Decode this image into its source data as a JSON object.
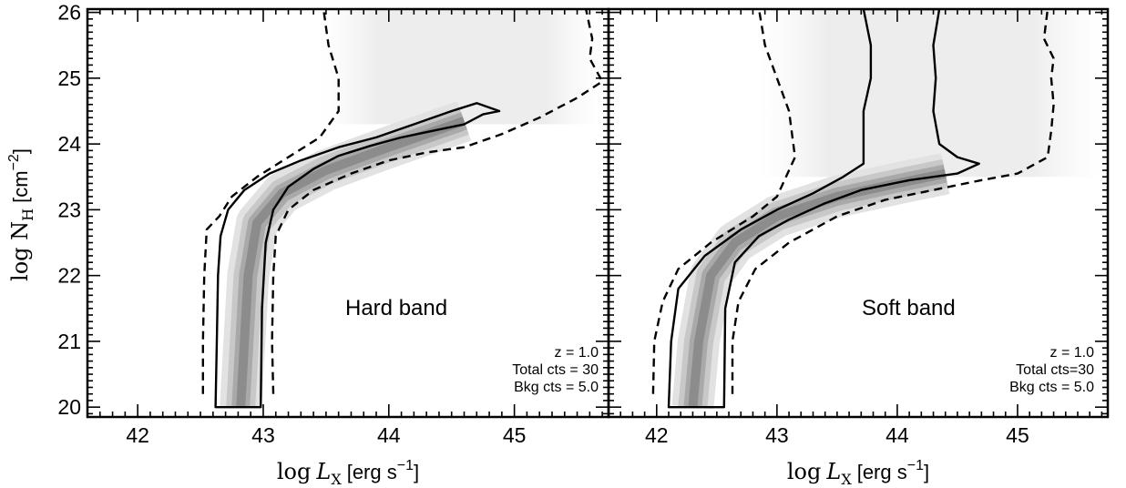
{
  "chart_data": [
    {
      "type": "heatmap",
      "panel": "left",
      "band_label": "Hard band",
      "annotation": [
        "z =   1.0",
        "Total cts = 30",
        "Bkg cts = 5.0"
      ],
      "xlabel": {
        "main": "log",
        "var": "L",
        "sub": "X",
        "unit": "[erg s",
        "sup": "−1",
        "close": "]"
      },
      "ylabel": {
        "main": "log N",
        "sub": "H",
        "unit": "[cm",
        "sup": "−2",
        "close": "]"
      },
      "xlim": [
        41.6,
        45.75
      ],
      "ylim": [
        19.85,
        26.05
      ],
      "xticks": [
        42,
        43,
        44,
        45
      ],
      "yticks": [
        20,
        21,
        22,
        23,
        24,
        25,
        26
      ],
      "xtick_labels": [
        "42",
        "43",
        "44",
        "45"
      ],
      "ytick_labels": [
        "20",
        "21",
        "22",
        "23",
        "24",
        "25",
        "26"
      ],
      "ridge": [
        [
          42.82,
          20.0
        ],
        [
          42.85,
          21.0
        ],
        [
          42.88,
          22.0
        ],
        [
          42.95,
          22.8
        ],
        [
          43.15,
          23.25
        ],
        [
          43.5,
          23.6
        ],
        [
          44.0,
          23.95
        ],
        [
          44.6,
          24.35
        ]
      ],
      "contour_solid": [
        [
          42.62,
          20.0
        ],
        [
          42.63,
          21.0
        ],
        [
          42.64,
          22.0
        ],
        [
          42.66,
          22.6
        ],
        [
          42.72,
          23.0
        ],
        [
          42.85,
          23.3
        ],
        [
          43.05,
          23.55
        ],
        [
          43.3,
          23.75
        ],
        [
          43.6,
          23.95
        ],
        [
          43.9,
          24.1
        ],
        [
          44.2,
          24.3
        ],
        [
          44.5,
          24.5
        ],
        [
          44.7,
          24.62
        ],
        [
          44.88,
          24.5
        ],
        [
          44.75,
          24.45
        ],
        [
          44.6,
          24.3
        ],
        [
          44.35,
          24.2
        ],
        [
          44.1,
          24.1
        ],
        [
          43.85,
          23.97
        ],
        [
          43.6,
          23.82
        ],
        [
          43.4,
          23.62
        ],
        [
          43.2,
          23.35
        ],
        [
          43.08,
          23.0
        ],
        [
          43.02,
          22.5
        ],
        [
          42.99,
          21.5
        ],
        [
          42.98,
          20.0
        ]
      ],
      "contour_dashed_left": [
        [
          42.52,
          20.2
        ],
        [
          42.52,
          21.0
        ],
        [
          42.53,
          22.0
        ],
        [
          42.55,
          22.7
        ],
        [
          42.65,
          22.9
        ],
        [
          42.75,
          23.2
        ],
        [
          42.95,
          23.5
        ],
        [
          43.2,
          23.8
        ],
        [
          43.45,
          24.1
        ],
        [
          43.6,
          24.5
        ],
        [
          43.6,
          25.0
        ],
        [
          43.52,
          25.5
        ],
        [
          43.48,
          26.05
        ]
      ],
      "contour_dashed_right": [
        [
          43.08,
          20.2
        ],
        [
          43.07,
          21.0
        ],
        [
          43.08,
          22.0
        ],
        [
          43.1,
          22.6
        ],
        [
          43.2,
          23.0
        ],
        [
          43.4,
          23.3
        ],
        [
          43.7,
          23.55
        ],
        [
          44.0,
          23.75
        ],
        [
          44.3,
          23.87
        ],
        [
          44.6,
          23.95
        ],
        [
          44.9,
          24.15
        ],
        [
          45.2,
          24.4
        ],
        [
          45.5,
          24.7
        ],
        [
          45.7,
          24.95
        ],
        [
          45.6,
          25.3
        ],
        [
          45.62,
          25.6
        ],
        [
          45.57,
          26.05
        ]
      ],
      "haze": {
        "x_range": [
          43.45,
          45.7
        ],
        "y_range": [
          24.3,
          26.05
        ]
      }
    },
    {
      "type": "heatmap",
      "panel": "right",
      "band_label": "Soft band",
      "annotation": [
        "z =   1.0",
        "Total cts=30",
        "Bkg cts = 5.0"
      ],
      "xlabel": {
        "main": "log",
        "var": "L",
        "sub": "X",
        "unit": "[erg s",
        "sup": "−1",
        "close": "]"
      },
      "xlim": [
        41.6,
        45.75
      ],
      "ylim": [
        19.85,
        26.05
      ],
      "xticks": [
        42,
        43,
        44,
        45
      ],
      "yticks": [
        20,
        21,
        22,
        23,
        24,
        25,
        26
      ],
      "xtick_labels": [
        "42",
        "43",
        "44",
        "45"
      ],
      "ridge": [
        [
          42.3,
          20.0
        ],
        [
          42.35,
          21.0
        ],
        [
          42.45,
          22.0
        ],
        [
          42.65,
          22.5
        ],
        [
          43.0,
          22.9
        ],
        [
          43.5,
          23.2
        ],
        [
          44.0,
          23.4
        ],
        [
          44.4,
          23.55
        ]
      ],
      "contour_solid": [
        [
          42.1,
          20.0
        ],
        [
          42.12,
          21.0
        ],
        [
          42.18,
          21.8
        ],
        [
          42.4,
          22.3
        ],
        [
          42.7,
          22.7
        ],
        [
          43.0,
          23.0
        ],
        [
          43.3,
          23.25
        ],
        [
          43.55,
          23.5
        ],
        [
          43.72,
          23.7
        ],
        [
          43.72,
          24.5
        ],
        [
          43.78,
          25.0
        ],
        [
          43.78,
          25.5
        ],
        [
          43.72,
          26.05
        ],
        [
          44.35,
          26.05
        ],
        [
          44.3,
          25.5
        ],
        [
          44.32,
          25.0
        ],
        [
          44.3,
          24.5
        ],
        [
          44.35,
          24.0
        ],
        [
          44.5,
          23.8
        ],
        [
          44.68,
          23.7
        ],
        [
          44.5,
          23.55
        ],
        [
          44.1,
          23.45
        ],
        [
          43.7,
          23.3
        ],
        [
          43.4,
          23.1
        ],
        [
          43.1,
          22.85
        ],
        [
          42.85,
          22.6
        ],
        [
          42.65,
          22.2
        ],
        [
          42.57,
          21.5
        ],
        [
          42.56,
          20.0
        ]
      ],
      "contour_dashed_left": [
        [
          41.97,
          20.2
        ],
        [
          41.98,
          21.0
        ],
        [
          42.05,
          21.6
        ],
        [
          42.18,
          22.1
        ],
        [
          42.45,
          22.5
        ],
        [
          42.8,
          22.9
        ],
        [
          43.0,
          23.2
        ],
        [
          43.15,
          23.8
        ],
        [
          43.1,
          24.5
        ],
        [
          43.0,
          25.0
        ],
        [
          42.9,
          25.5
        ],
        [
          42.85,
          26.05
        ]
      ],
      "contour_dashed_right": [
        [
          42.63,
          20.2
        ],
        [
          42.63,
          21.0
        ],
        [
          42.68,
          21.6
        ],
        [
          42.82,
          22.1
        ],
        [
          43.1,
          22.5
        ],
        [
          43.5,
          22.9
        ],
        [
          43.9,
          23.15
        ],
        [
          44.3,
          23.3
        ],
        [
          44.7,
          23.45
        ],
        [
          45.0,
          23.55
        ],
        [
          45.25,
          23.8
        ],
        [
          45.28,
          24.2
        ],
        [
          45.3,
          24.6
        ],
        [
          45.28,
          25.0
        ],
        [
          45.3,
          25.3
        ],
        [
          45.22,
          25.6
        ],
        [
          45.25,
          26.05
        ]
      ],
      "haze": {
        "x_range": [
          42.85,
          45.7
        ],
        "y_range": [
          23.5,
          26.05
        ]
      }
    }
  ]
}
